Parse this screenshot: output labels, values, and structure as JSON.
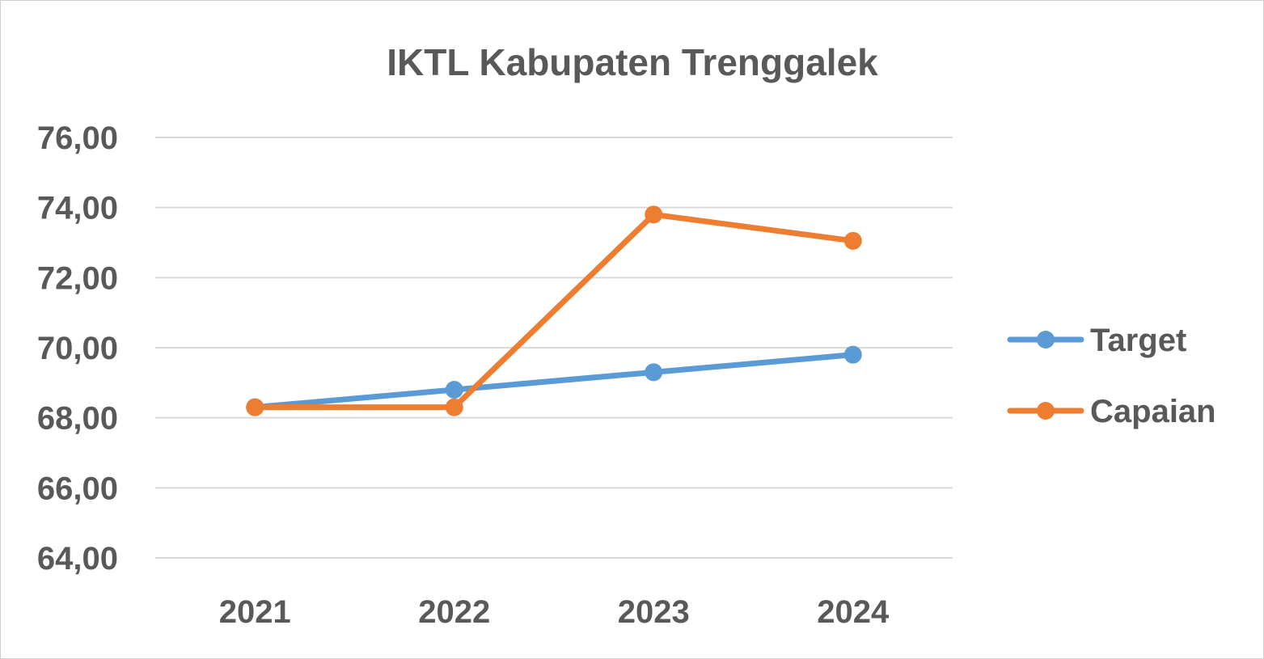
{
  "chart_data": {
    "type": "line",
    "title": "IKTL Kabupaten Trenggalek",
    "categories": [
      "2021",
      "2022",
      "2023",
      "2024"
    ],
    "series": [
      {
        "name": "Target",
        "color": "#5b9bd5",
        "values": [
          68.3,
          68.8,
          69.3,
          69.8
        ]
      },
      {
        "name": "Capaian",
        "color": "#ed7d31",
        "values": [
          68.3,
          68.3,
          73.8,
          73.05
        ]
      }
    ],
    "ylim": [
      64,
      76
    ],
    "yticks": [
      76,
      74,
      72,
      70,
      68,
      66,
      64
    ],
    "ytick_labels": [
      "76,00",
      "74,00",
      "72,00",
      "70,00",
      "68,00",
      "66,00",
      "64,00"
    ],
    "grid": true,
    "legend_position": "right",
    "gridline_color": "#d9d9d9"
  }
}
